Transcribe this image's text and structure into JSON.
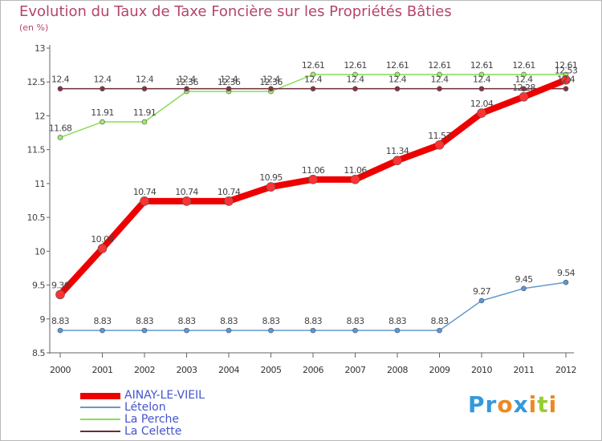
{
  "title": "Evolution du Taux de Taxe Foncière sur les Propriétés Bâties",
  "unit_label": "(en %)",
  "chart_data": {
    "type": "line",
    "x": [
      "2000",
      "2001",
      "2002",
      "2003",
      "2004",
      "2005",
      "2006",
      "2007",
      "2008",
      "2009",
      "2010",
      "2011",
      "2012"
    ],
    "ylim": [
      8.5,
      13
    ],
    "yticks": [
      8.5,
      9,
      9.5,
      10,
      10.5,
      11,
      11.5,
      12,
      12.5,
      13
    ],
    "ytick_labels": [
      "8.5",
      "9",
      "9.5",
      "10",
      "10.5",
      "11",
      "11.5",
      "12",
      "12.5",
      "13"
    ],
    "grid": false,
    "series": [
      {
        "name": "AINAY-LE-VIEIL",
        "color": "#ee0000",
        "values": [
          9.36,
          10.04,
          10.74,
          10.74,
          10.74,
          10.95,
          11.06,
          11.06,
          11.34,
          11.57,
          12.04,
          12.28,
          12.53
        ],
        "labels": [
          "9.36",
          "10.04",
          "10.74",
          "10.74",
          "10.74",
          "10.95",
          "11.06",
          "11.06",
          "11.34",
          "11.57",
          "12.04",
          "12.28",
          "12.53"
        ]
      },
      {
        "name": "Lételon",
        "color": "#6699cc",
        "values": [
          8.83,
          8.83,
          8.83,
          8.83,
          8.83,
          8.83,
          8.83,
          8.83,
          8.83,
          8.83,
          9.27,
          9.45,
          9.54
        ],
        "labels": [
          "8.83",
          "8.83",
          "8.83",
          "8.83",
          "8.83",
          "8.83",
          "8.83",
          "8.83",
          "8.83",
          "8.83",
          "9.27",
          "9.45",
          "9.54"
        ]
      },
      {
        "name": "La Perche",
        "color": "#88dd55",
        "values": [
          11.68,
          11.91,
          11.91,
          12.36,
          12.36,
          12.36,
          12.61,
          12.61,
          12.61,
          12.61,
          12.61,
          12.61,
          12.61
        ],
        "labels": [
          "11.68",
          "11.91",
          "11.91",
          "12.36",
          "12.36",
          "12.36",
          "12.61",
          "12.61",
          "12.61",
          "12.61",
          "12.61",
          "12.61",
          "12.61"
        ]
      },
      {
        "name": "La Celette",
        "color": "#6a2c36",
        "values": [
          12.4,
          12.4,
          12.4,
          12.4,
          12.4,
          12.4,
          12.4,
          12.4,
          12.4,
          12.4,
          12.4,
          12.4,
          12.4
        ],
        "labels": [
          "12.4",
          "12.4",
          "12.4",
          "12.4",
          "12.4",
          "12.4",
          "12.4",
          "12.4",
          "12.4",
          "12.4",
          "12.4",
          "12.4",
          "12.4"
        ]
      }
    ]
  },
  "legend": {
    "items": [
      {
        "label": "AINAY-LE-VIEIL",
        "color": "#ee0000"
      },
      {
        "label": "Lételon",
        "color": "#6699cc"
      },
      {
        "label": "La Perche",
        "color": "#88dd55"
      },
      {
        "label": "La Celette",
        "color": "#6a2c36"
      }
    ]
  },
  "logo": {
    "letters": [
      "P",
      "r",
      "o",
      "x",
      "i",
      "t",
      "i"
    ],
    "colors": [
      "#3399dd",
      "#3399dd",
      "#ee8822",
      "#3399dd",
      "#ee8822",
      "#99cc33",
      "#ee8822"
    ]
  }
}
